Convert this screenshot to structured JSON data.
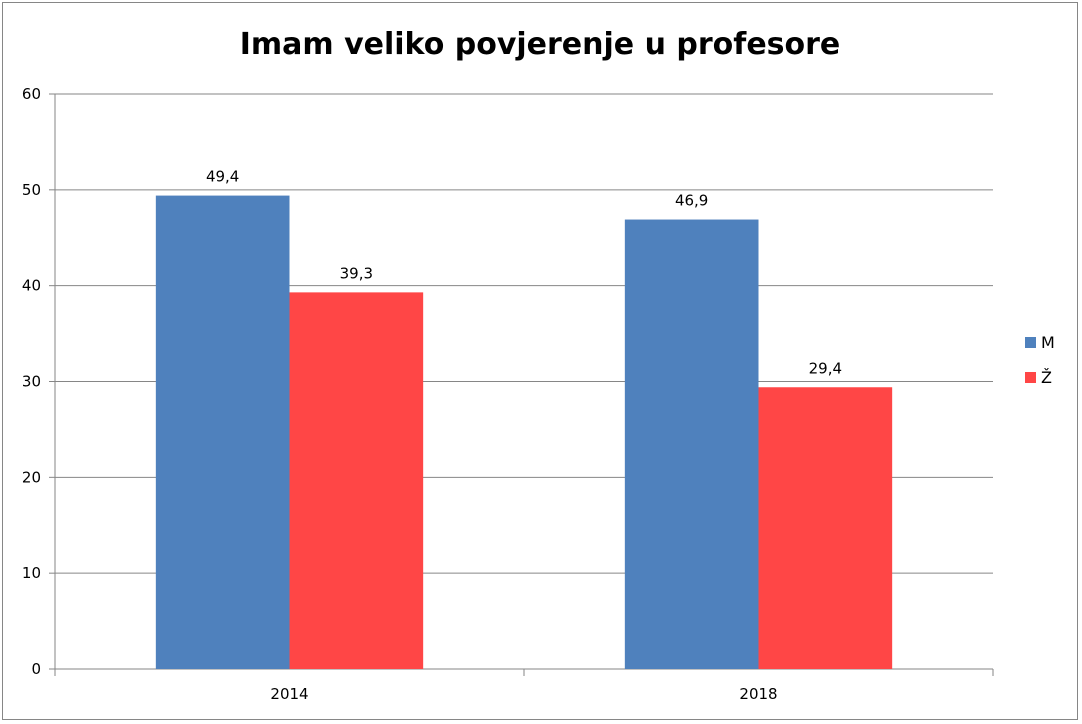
{
  "chart_data": {
    "type": "bar",
    "title": "Imam veliko povjerenje u profesore",
    "xlabel": "",
    "ylabel": "",
    "categories": [
      "2014",
      "2018"
    ],
    "series": [
      {
        "name": "M",
        "values": [
          49.4,
          46.9
        ],
        "labels": [
          "49,4",
          "46,9"
        ],
        "color": "#4F81BD"
      },
      {
        "name": "Ž",
        "values": [
          39.3,
          29.4
        ],
        "labels": [
          "39,3",
          "29,4"
        ],
        "color": "#FF4646"
      }
    ],
    "ylim": [
      0,
      60
    ],
    "yticks": [
      "0",
      "10",
      "20",
      "30",
      "40",
      "50",
      "60"
    ],
    "grid": true,
    "legend_position": "right"
  }
}
